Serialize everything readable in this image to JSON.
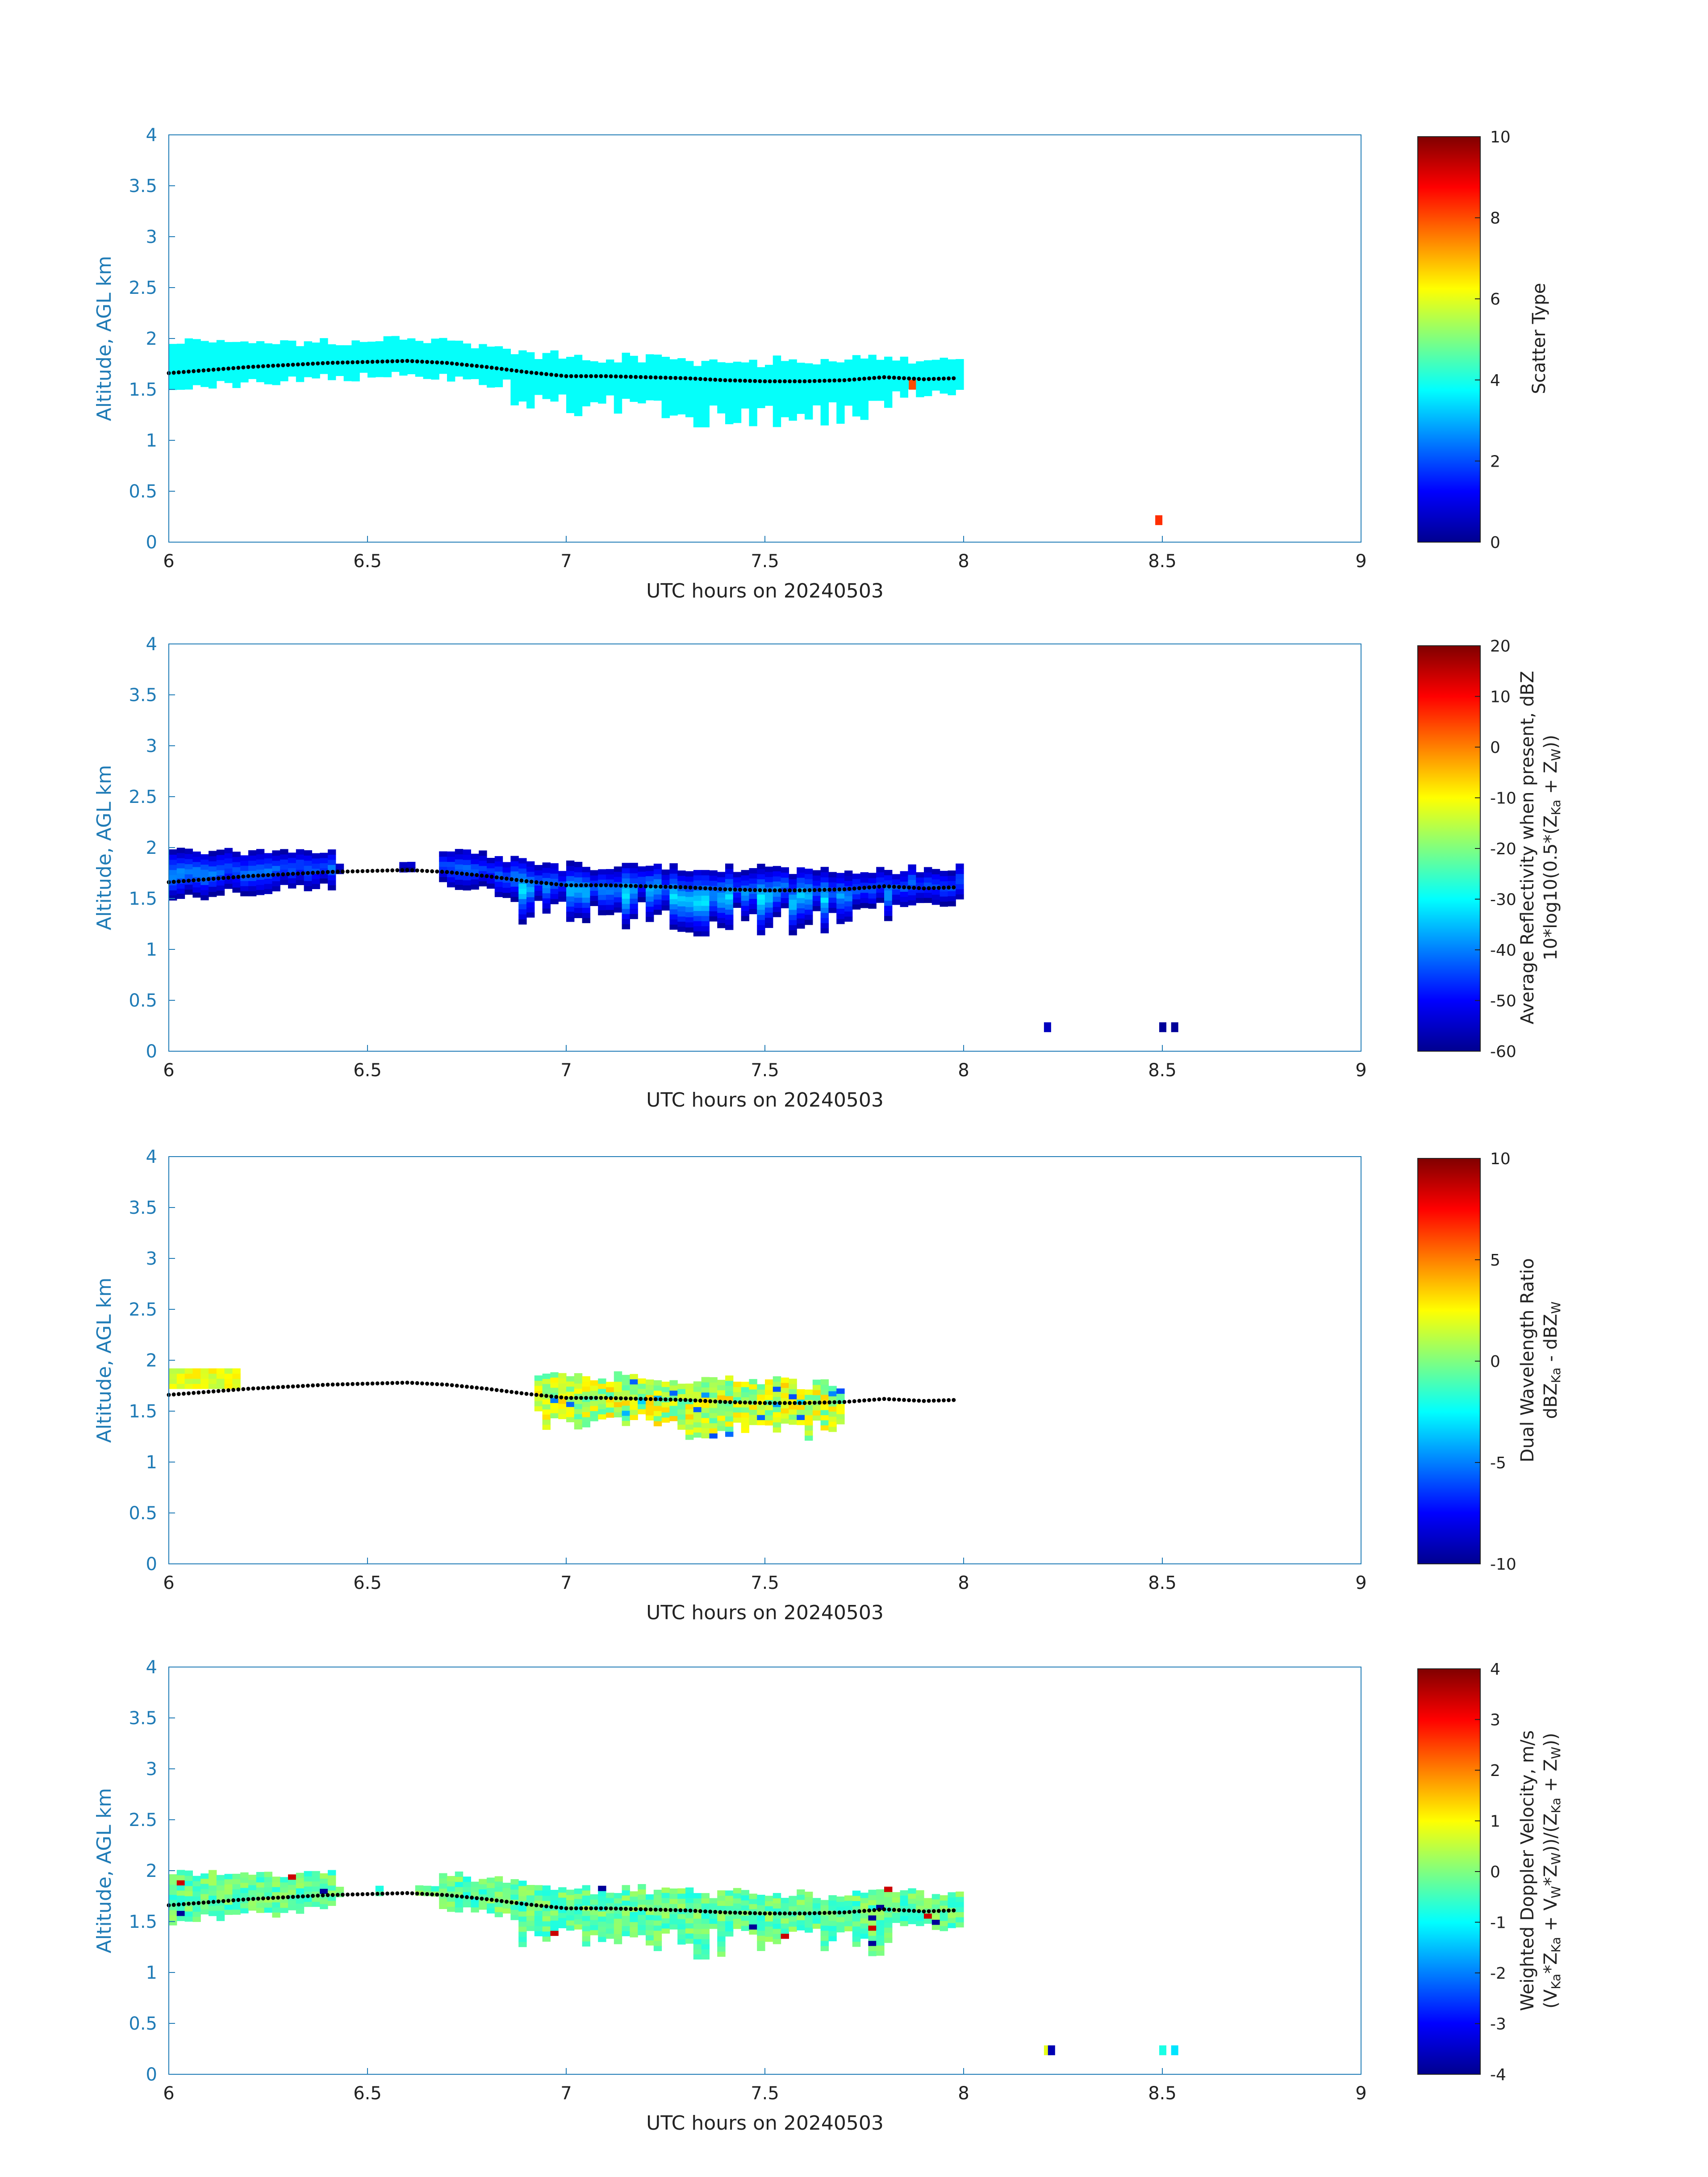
{
  "chart_data": [
    {
      "type": "heatmap",
      "xlabel": "UTC hours on 20240503",
      "ylabel": "Altitude, AGL km",
      "xlim": [
        6,
        9
      ],
      "ylim": [
        0,
        4
      ],
      "xticks": [
        "6",
        "6.5",
        "7",
        "7.5",
        "8",
        "8.5",
        "9"
      ],
      "yticks": [
        "0",
        "0.5",
        "1",
        "1.5",
        "2",
        "2.5",
        "3",
        "3.5",
        "4"
      ],
      "colorbar": {
        "label_lines": [
          "Scatter Type"
        ],
        "ticks": [
          "0",
          "2",
          "4",
          "6",
          "8",
          "10"
        ],
        "range": [
          0,
          10
        ],
        "colormap": "jet"
      },
      "grid": false,
      "dominant_value": 3.8,
      "cloud_layer": {
        "x_start": 6.0,
        "x_end": 7.98,
        "mode": "continuous"
      },
      "isolated_points": [
        {
          "x": 8.49,
          "y": 0.22,
          "value": 8.3
        },
        {
          "x": 7.87,
          "y": 1.55,
          "value": 8.0
        }
      ]
    },
    {
      "type": "heatmap",
      "xlabel": "UTC hours on 20240503",
      "ylabel": "Altitude, AGL km",
      "xlim": [
        6,
        9
      ],
      "ylim": [
        0,
        4
      ],
      "xticks": [
        "6",
        "6.5",
        "7",
        "7.5",
        "8",
        "8.5",
        "9"
      ],
      "yticks": [
        "0",
        "0.5",
        "1",
        "1.5",
        "2",
        "2.5",
        "3",
        "3.5",
        "4"
      ],
      "colorbar": {
        "label_lines": [
          "Average Reflectivity when present, dBZ",
          "10*log10(0.5*(Z",
          "Ka",
          " + Z",
          "W",
          "))"
        ],
        "ticks": [
          "-60",
          "-50",
          "-40",
          "-30",
          "-20",
          "-10",
          "0",
          "10",
          "20"
        ],
        "range": [
          -60,
          20
        ],
        "colormap": "jet"
      },
      "grid": false,
      "value_range_in_cloud": [
        -60,
        -30
      ],
      "cloud_layer": {
        "x_start": 6.0,
        "x_end": 7.98,
        "gaps": [
          [
            6.41,
            6.66
          ]
        ],
        "mode": "reflectivity"
      },
      "isolated_points": [
        {
          "x": 8.21,
          "y": 0.24,
          "value": -55
        },
        {
          "x": 8.5,
          "y": 0.24,
          "value": -58
        },
        {
          "x": 8.53,
          "y": 0.24,
          "value": -58
        }
      ]
    },
    {
      "type": "heatmap",
      "xlabel": "UTC hours on 20240503",
      "ylabel": "Altitude, AGL km",
      "xlim": [
        6,
        9
      ],
      "ylim": [
        0,
        4
      ],
      "xticks": [
        "6",
        "6.5",
        "7",
        "7.5",
        "8",
        "8.5",
        "9"
      ],
      "yticks": [
        "0",
        "0.5",
        "1",
        "1.5",
        "2",
        "2.5",
        "3",
        "3.5",
        "4"
      ],
      "colorbar": {
        "label_lines": [
          "Dual Wavelength Ratio",
          "dBZ",
          "Ka",
          " - dBZ",
          "W"
        ],
        "ticks": [
          "-10",
          "-5",
          "0",
          "5",
          "10"
        ],
        "range": [
          -10,
          10
        ],
        "colormap": "jet"
      },
      "grid": false,
      "value_range_in_cloud": [
        -3,
        4
      ],
      "cloud_layer": {
        "x_start": 6.92,
        "x_end": 7.68,
        "mode": "dwr",
        "extra_patches": [
          [
            6.0,
            6.16
          ]
        ]
      },
      "isolated_points": []
    },
    {
      "type": "heatmap",
      "xlabel": "UTC hours on 20240503",
      "ylabel": "Altitude, AGL km",
      "xlim": [
        6,
        9
      ],
      "ylim": [
        0,
        4
      ],
      "xticks": [
        "6",
        "6.5",
        "7",
        "7.5",
        "8",
        "8.5",
        "9"
      ],
      "yticks": [
        "0",
        "0.5",
        "1",
        "1.5",
        "2",
        "2.5",
        "3",
        "3.5",
        "4"
      ],
      "colorbar": {
        "label_lines": [
          "Weighted Doppler Velocity, m/s",
          "(V",
          "Ka",
          "*Z",
          "Ka",
          " + V",
          "W",
          "*Z",
          "W",
          "))/(Z",
          "Ka",
          " + Z",
          "W",
          "))"
        ],
        "ticks": [
          "-4",
          "-3",
          "-2",
          "-1",
          "0",
          "1",
          "2",
          "3",
          "4"
        ],
        "range": [
          -4,
          4
        ],
        "colormap": "jet"
      },
      "grid": false,
      "value_range_in_cloud": [
        -1.3,
        0.5
      ],
      "cloud_layer": {
        "x_start": 6.0,
        "x_end": 7.98,
        "gaps": [
          [
            6.41,
            6.66
          ]
        ],
        "mode": "velocity"
      },
      "isolated_points": [
        {
          "x": 8.21,
          "y": 0.24,
          "value": 0.8
        },
        {
          "x": 8.22,
          "y": 0.24,
          "value": -3.6
        },
        {
          "x": 8.5,
          "y": 0.24,
          "value": -0.8
        },
        {
          "x": 8.53,
          "y": 0.24,
          "value": -1.2
        }
      ]
    }
  ],
  "cloud_base_dots": {
    "x": [
      6.0,
      6.1,
      6.2,
      6.3,
      6.4,
      6.5,
      6.6,
      6.7,
      6.8,
      6.9,
      7.0,
      7.1,
      7.2,
      7.3,
      7.4,
      7.5,
      7.6,
      7.7,
      7.8,
      7.9,
      7.98
    ],
    "y": [
      1.66,
      1.69,
      1.72,
      1.74,
      1.76,
      1.77,
      1.78,
      1.76,
      1.72,
      1.67,
      1.63,
      1.63,
      1.62,
      1.61,
      1.59,
      1.58,
      1.58,
      1.59,
      1.62,
      1.6,
      1.61
    ]
  }
}
